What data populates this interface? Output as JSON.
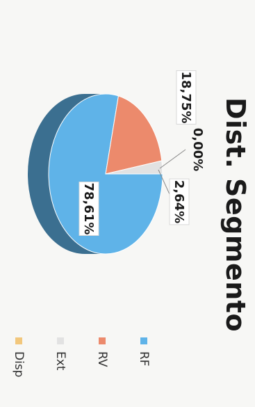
{
  "chart_data": {
    "type": "pie",
    "title": "Dist. Segmento",
    "categories": [
      "RF",
      "RV",
      "Ext",
      "Disp"
    ],
    "values": [
      78.61,
      18.75,
      2.64,
      0.0
    ],
    "labels": [
      "78,61%",
      "18,75%",
      "2,64%",
      "0,00%"
    ],
    "colors": [
      "#5fb3e8",
      "#ec8a6c",
      "#e2e2e2",
      "#f2c77c"
    ],
    "legend_position": "right",
    "style": "3d"
  }
}
